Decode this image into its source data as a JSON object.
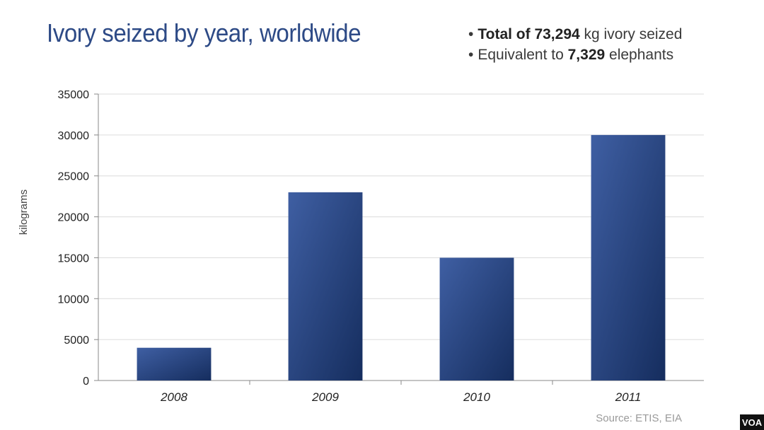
{
  "header": {
    "title": "Ivory seized by year, worldwide",
    "note1": {
      "prefix": "Total of ",
      "value": "73,294",
      "suffix": " kg ivory seized"
    },
    "note2": {
      "prefix": "Equivalent to ",
      "value": "7,329",
      "suffix": " elephants"
    }
  },
  "chart_data": {
    "type": "bar",
    "categories": [
      "2008",
      "2009",
      "2010",
      "2011"
    ],
    "values": [
      4000,
      23000,
      15000,
      30000
    ],
    "ylabel": "kilograms",
    "ylim": [
      0,
      35000
    ],
    "yticks": [
      "0",
      "5000",
      "10000",
      "15000",
      "20000",
      "25000",
      "30000",
      "35000"
    ],
    "grid": true,
    "colors": {
      "bar_light": "#3f5fa3",
      "bar_dark": "#152d5e"
    }
  },
  "footer": {
    "source": "Source: ETIS, EIA",
    "logo": "VOA"
  }
}
